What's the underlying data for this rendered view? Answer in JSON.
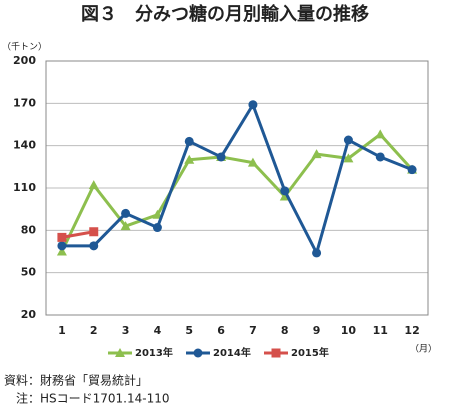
{
  "chart_data": {
    "type": "line",
    "title": "図３　分みつ糖の月別輸入量の推移",
    "y_unit": "（千トン）",
    "x_unit": "（月）",
    "categories": [
      1,
      2,
      3,
      4,
      5,
      6,
      7,
      8,
      9,
      10,
      11,
      12
    ],
    "series": [
      {
        "name": "2013年",
        "color": "#8dbf4e",
        "marker": "triangle",
        "values": [
          65,
          112,
          83,
          91,
          130,
          132,
          128,
          104,
          134,
          131,
          148,
          123
        ]
      },
      {
        "name": "2014年",
        "color": "#1f5895",
        "marker": "circle",
        "values": [
          69,
          69,
          92,
          82,
          143,
          132,
          169,
          108,
          64,
          144,
          132,
          123
        ]
      },
      {
        "name": "2015年",
        "color": "#d5504b",
        "marker": "square",
        "values": [
          75,
          79,
          null,
          null,
          null,
          null,
          null,
          null,
          null,
          null,
          null,
          null
        ]
      }
    ],
    "ylim": [
      20,
      200
    ],
    "yticks": [
      20,
      50,
      80,
      110,
      140,
      170,
      200
    ],
    "grid": true,
    "legend": "bottom",
    "notes": [
      "資料：財務省「貿易統計」",
      "　注：HSコード1701.14-110"
    ]
  }
}
